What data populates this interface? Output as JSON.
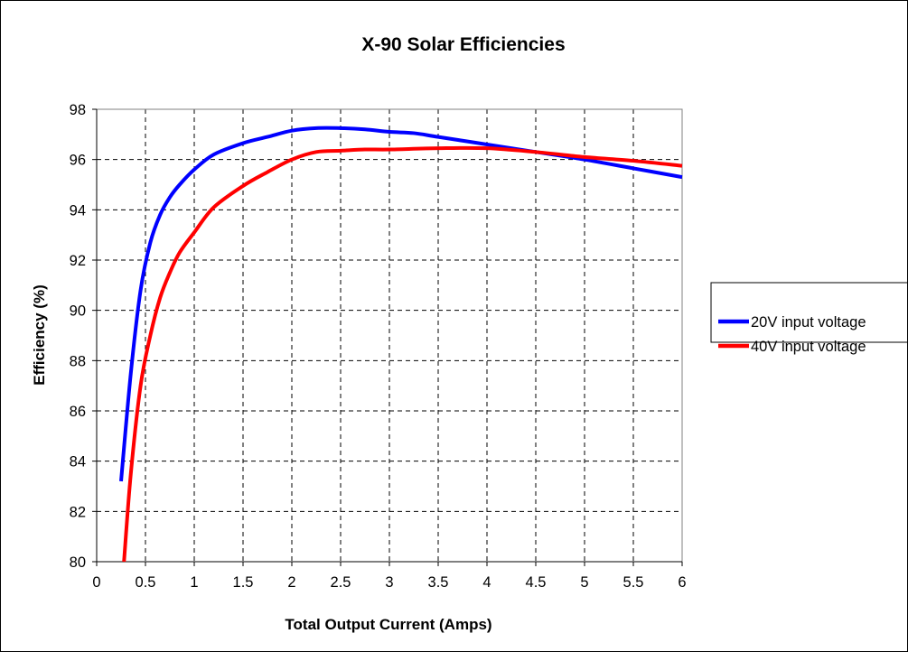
{
  "chart_data": {
    "type": "line",
    "title": "X-90 Solar Efficiencies",
    "xlabel": "Total Output Current (Amps)",
    "ylabel": "Efficiency (%)",
    "xlim": [
      0,
      6
    ],
    "ylim": [
      80,
      98
    ],
    "xticks": [
      "0",
      "0.5",
      "1",
      "1.5",
      "2",
      "2.5",
      "3",
      "3.5",
      "4",
      "4.5",
      "5",
      "5.5",
      "6"
    ],
    "yticks": [
      "80",
      "82",
      "84",
      "86",
      "88",
      "90",
      "92",
      "94",
      "96",
      "98"
    ],
    "grid": true,
    "legend": "right",
    "series": [
      {
        "name": "20V input voltage",
        "color": "#0000ff",
        "x": [
          0.25,
          0.35,
          0.45,
          0.55,
          0.65,
          0.75,
          0.85,
          1.0,
          1.2,
          1.5,
          1.75,
          2.0,
          2.25,
          2.5,
          2.75,
          3.0,
          3.25,
          3.5,
          4.0,
          4.5,
          5.0,
          5.5,
          6.0
        ],
        "y": [
          83.2,
          87.5,
          90.8,
          92.7,
          93.8,
          94.5,
          95.0,
          95.6,
          96.2,
          96.65,
          96.9,
          97.15,
          97.25,
          97.25,
          97.2,
          97.1,
          97.05,
          96.9,
          96.6,
          96.3,
          96.0,
          95.65,
          95.3
        ]
      },
      {
        "name": "40V input voltage",
        "color": "#ff0000",
        "x": [
          0.28,
          0.35,
          0.45,
          0.55,
          0.65,
          0.75,
          0.85,
          1.0,
          1.2,
          1.5,
          1.75,
          2.0,
          2.25,
          2.5,
          2.75,
          3.0,
          3.5,
          4.0,
          4.5,
          5.0,
          5.5,
          6.0
        ],
        "y": [
          80.0,
          83.5,
          87.0,
          89.0,
          90.5,
          91.5,
          92.3,
          93.1,
          94.1,
          94.95,
          95.5,
          96.0,
          96.3,
          96.35,
          96.4,
          96.4,
          96.45,
          96.45,
          96.3,
          96.1,
          95.95,
          95.75
        ]
      }
    ]
  }
}
